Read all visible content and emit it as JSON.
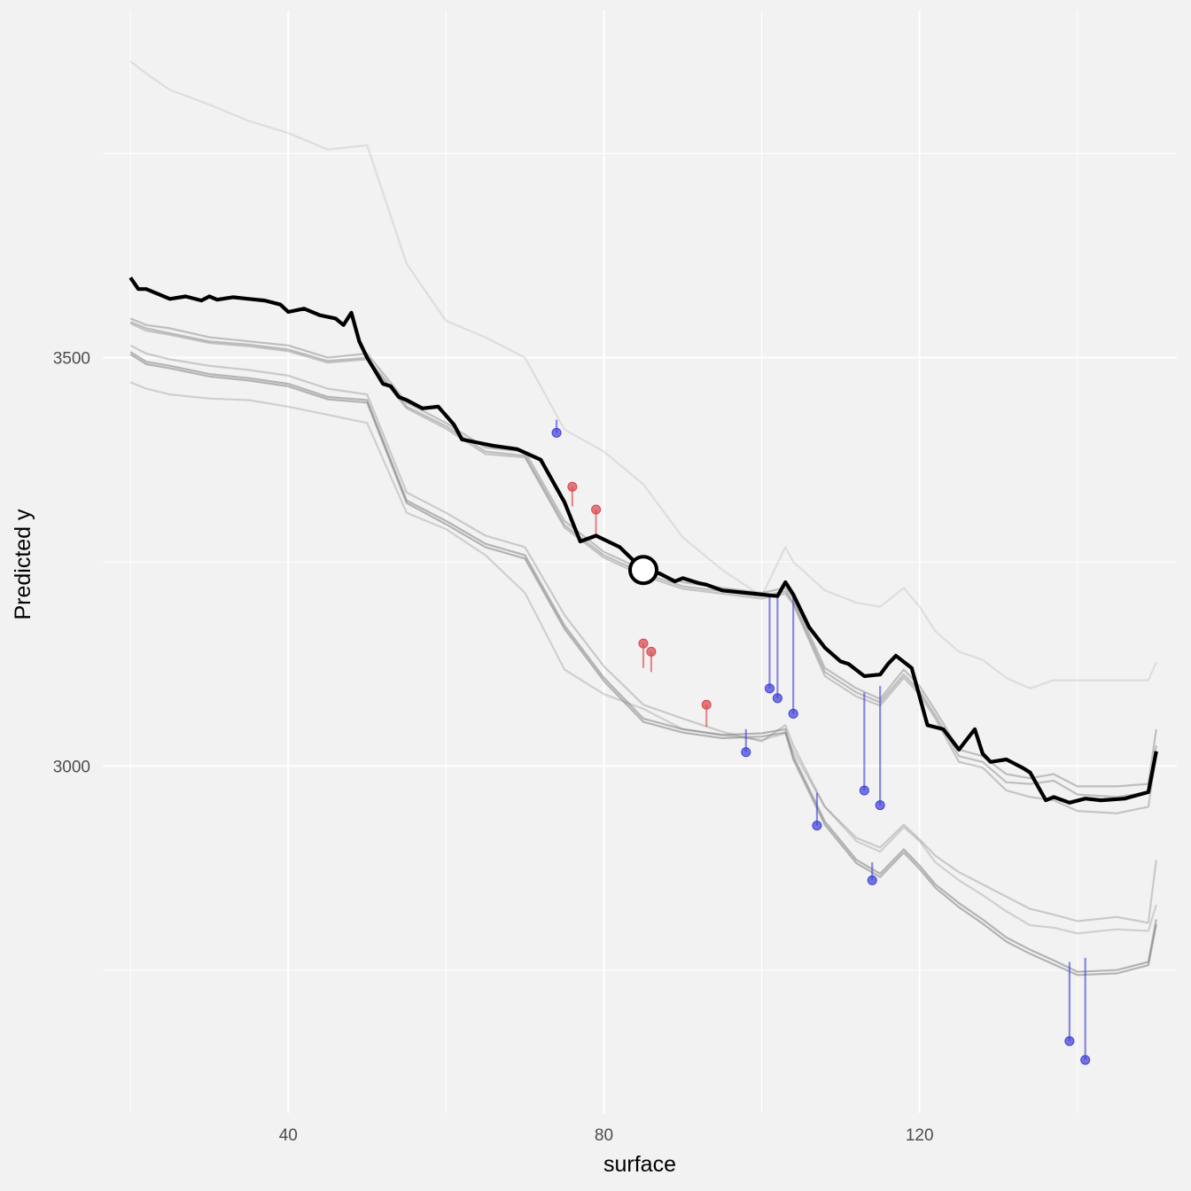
{
  "chart_data": {
    "type": "line",
    "title": "",
    "xlabel": "surface",
    "ylabel": "Predicted y",
    "xlim": [
      16.5,
      152.6
    ],
    "ylim": [
      2575,
      3925
    ],
    "x_ticks": [
      40,
      80,
      120
    ],
    "x_tick_labels": [
      "40",
      "80",
      "120"
    ],
    "x_minor_ticks": [
      20,
      60,
      100,
      140
    ],
    "y_ticks": [
      3000,
      3500
    ],
    "y_tick_labels": [
      "3000",
      "3500"
    ],
    "y_minor_ticks": [
      2750,
      3250,
      3750
    ],
    "grid": true,
    "legend": "none",
    "colors": {
      "background": "#f2f2f2",
      "grid": "#ffffff",
      "ice_lines": "#7f7f7f",
      "highlight_line": "#000000",
      "highlight_point": "#ffffff",
      "positive_residual": "#d9454a",
      "negative_residual": "#3f3fd9"
    },
    "ice_lines": [
      {
        "x": [
          20,
          22,
          25,
          30,
          35,
          40,
          45,
          50,
          55,
          60,
          65,
          70,
          75,
          80,
          85,
          90,
          95,
          100,
          103,
          104,
          108,
          112,
          115,
          118,
          120,
          122,
          125,
          128,
          131,
          134,
          137,
          140,
          145,
          149,
          150
        ],
        "y": [
          3863,
          3848,
          3828,
          3810,
          3790,
          3775,
          3755,
          3760,
          3615,
          3545,
          3525,
          3500,
          3412,
          3385,
          3345,
          3280,
          3240,
          3208,
          3268,
          3250,
          3215,
          3200,
          3195,
          3218,
          3195,
          3165,
          3140,
          3130,
          3108,
          3095,
          3105,
          3105,
          3105,
          3105,
          3127
        ],
        "opacity": 0.18
      },
      {
        "x": [
          20,
          22,
          25,
          30,
          35,
          40,
          45,
          50,
          55,
          60,
          65,
          70,
          75,
          80,
          85,
          90,
          95,
          100,
          103,
          104,
          108,
          112,
          115,
          118,
          120,
          122,
          125,
          128,
          131,
          134,
          137,
          140,
          145,
          149,
          150
        ],
        "y": [
          3548,
          3540,
          3536,
          3525,
          3520,
          3515,
          3500,
          3505,
          3445,
          3420,
          3390,
          3385,
          3300,
          3262,
          3240,
          3225,
          3218,
          3212,
          3218,
          3205,
          3120,
          3095,
          3082,
          3118,
          3098,
          3068,
          3020,
          3012,
          2990,
          2985,
          2990,
          2975,
          2975,
          2978,
          3045
        ],
        "opacity": 0.45
      },
      {
        "x": [
          20,
          22,
          25,
          30,
          35,
          40,
          45,
          50,
          55,
          60,
          65,
          70,
          75,
          80,
          85,
          90,
          95,
          100,
          103,
          104,
          108,
          112,
          115,
          118,
          120,
          122,
          125,
          128,
          131,
          134,
          137,
          140,
          145,
          149,
          150
        ],
        "y": [
          3544,
          3536,
          3530,
          3520,
          3516,
          3510,
          3496,
          3500,
          3440,
          3416,
          3385,
          3380,
          3295,
          3258,
          3236,
          3220,
          3214,
          3208,
          3214,
          3200,
          3115,
          3090,
          3078,
          3112,
          3092,
          3062,
          3012,
          3005,
          2980,
          2978,
          2982,
          2965,
          2962,
          2968,
          3025
        ],
        "opacity": 0.45
      },
      {
        "x": [
          20,
          22,
          25,
          30,
          35,
          40,
          45,
          50,
          55,
          60,
          65,
          70,
          75,
          80,
          85,
          90,
          95,
          100,
          103,
          104,
          108,
          112,
          115,
          118,
          120,
          122,
          125,
          128,
          131,
          134,
          137,
          140,
          145,
          149,
          150
        ],
        "y": [
          3542,
          3533,
          3528,
          3518,
          3514,
          3508,
          3494,
          3498,
          3438,
          3413,
          3382,
          3378,
          3292,
          3255,
          3233,
          3217,
          3211,
          3205,
          3211,
          3198,
          3110,
          3085,
          3074,
          3108,
          3088,
          3058,
          3005,
          2998,
          2970,
          2962,
          2958,
          2945,
          2942,
          2950,
          3015
        ],
        "opacity": 0.4
      },
      {
        "x": [
          20,
          22,
          25,
          30,
          35,
          40,
          45,
          50,
          55,
          60,
          65,
          70,
          75,
          80,
          85,
          90,
          95,
          100,
          103,
          104,
          108,
          112,
          115,
          118,
          120,
          122,
          125,
          128,
          131,
          134,
          137,
          140,
          145,
          149,
          150
        ],
        "y": [
          3515,
          3505,
          3498,
          3490,
          3485,
          3478,
          3462,
          3455,
          3335,
          3310,
          3282,
          3268,
          3185,
          3122,
          3075,
          3058,
          3042,
          3030,
          3050,
          3025,
          2950,
          2912,
          2900,
          2928,
          2910,
          2890,
          2870,
          2855,
          2840,
          2825,
          2818,
          2810,
          2815,
          2808,
          2885
        ],
        "opacity": 0.35
      },
      {
        "x": [
          20,
          22,
          25,
          30,
          35,
          40,
          45,
          50,
          55,
          60,
          65,
          70,
          75,
          80,
          85,
          90,
          95,
          100,
          103,
          104,
          108,
          112,
          115,
          118,
          120,
          122,
          125,
          128,
          131,
          134,
          137,
          140,
          145,
          149,
          150
        ],
        "y": [
          3507,
          3495,
          3490,
          3480,
          3475,
          3468,
          3452,
          3448,
          3325,
          3300,
          3272,
          3258,
          3172,
          3108,
          3058,
          3045,
          3038,
          3040,
          3045,
          3012,
          2932,
          2885,
          2868,
          2898,
          2878,
          2855,
          2832,
          2812,
          2790,
          2775,
          2762,
          2748,
          2750,
          2760,
          2812
        ],
        "opacity": 0.55
      },
      {
        "x": [
          20,
          22,
          25,
          30,
          35,
          40,
          45,
          50,
          55,
          60,
          65,
          70,
          75,
          80,
          85,
          90,
          95,
          100,
          103,
          104,
          108,
          112,
          115,
          118,
          120,
          122,
          125,
          128,
          131,
          134,
          137,
          140,
          145,
          149,
          150
        ],
        "y": [
          3504,
          3492,
          3487,
          3477,
          3472,
          3465,
          3449,
          3445,
          3322,
          3296,
          3268,
          3254,
          3168,
          3104,
          3054,
          3041,
          3034,
          3036,
          3041,
          3008,
          2928,
          2881,
          2864,
          2894,
          2874,
          2851,
          2827,
          2807,
          2785,
          2770,
          2757,
          2744,
          2746,
          2756,
          2806
        ],
        "opacity": 0.55
      },
      {
        "x": [
          20,
          22,
          25,
          30,
          35,
          40,
          45,
          50,
          55,
          60,
          65,
          70,
          75,
          80,
          85,
          90,
          95,
          100,
          103,
          104,
          108,
          112,
          115,
          118,
          120,
          122,
          125,
          128,
          131,
          134,
          137,
          140,
          145,
          149,
          150
        ],
        "y": [
          3470,
          3462,
          3455,
          3450,
          3448,
          3440,
          3430,
          3420,
          3310,
          3290,
          3258,
          3212,
          3118,
          3088,
          3070,
          3045,
          3038,
          3032,
          3040,
          3018,
          2950,
          2908,
          2895,
          2925,
          2908,
          2882,
          2860,
          2842,
          2822,
          2805,
          2802,
          2795,
          2800,
          2798,
          2830
        ],
        "opacity": 0.3
      }
    ],
    "highlight_line": {
      "x": [
        20,
        21,
        22,
        25,
        27,
        29,
        30,
        31,
        33,
        35,
        37,
        39,
        40,
        42,
        44,
        46,
        47,
        48,
        49,
        50,
        52,
        53,
        54,
        55,
        57,
        59,
        61,
        62,
        64,
        66,
        69,
        72,
        75,
        77,
        79,
        82,
        85,
        87,
        89,
        90,
        92,
        93,
        95,
        98,
        100,
        102,
        103,
        104,
        106,
        108,
        110,
        111,
        113,
        115,
        116,
        117,
        119,
        120,
        121,
        123,
        125,
        127,
        128,
        129,
        131,
        133,
        134,
        136,
        137,
        139,
        141,
        143,
        146,
        149,
        150
      ],
      "y": [
        3598,
        3584,
        3584,
        3572,
        3575,
        3570,
        3575,
        3571,
        3574,
        3572,
        3570,
        3565,
        3556,
        3560,
        3552,
        3548,
        3540,
        3555,
        3520,
        3500,
        3468,
        3465,
        3452,
        3448,
        3438,
        3440,
        3418,
        3400,
        3396,
        3392,
        3388,
        3375,
        3323,
        3275,
        3282,
        3268,
        3240,
        3236,
        3226,
        3230,
        3224,
        3222,
        3215,
        3212,
        3210,
        3208,
        3225,
        3210,
        3170,
        3145,
        3128,
        3125,
        3110,
        3112,
        3125,
        3135,
        3120,
        3085,
        3050,
        3045,
        3020,
        3045,
        3015,
        3005,
        3008,
        2998,
        2992,
        2958,
        2962,
        2955,
        2960,
        2958,
        2960,
        2968,
        3018
      ]
    },
    "highlight_point": {
      "x": 85,
      "y": 3240
    },
    "residuals": [
      {
        "x": 74,
        "y_point": 3408,
        "y_line": 3424,
        "sign": "negative"
      },
      {
        "x": 76,
        "y_point": 3342,
        "y_line": 3318,
        "sign": "positive"
      },
      {
        "x": 79,
        "y_point": 3314,
        "y_line": 3284,
        "sign": "positive"
      },
      {
        "x": 85,
        "y_point": 3150,
        "y_line": 3120,
        "sign": "positive"
      },
      {
        "x": 86,
        "y_point": 3140,
        "y_line": 3115,
        "sign": "positive"
      },
      {
        "x": 93,
        "y_point": 3075,
        "y_line": 3048,
        "sign": "positive"
      },
      {
        "x": 98,
        "y_point": 3017,
        "y_line": 3045,
        "sign": "negative"
      },
      {
        "x": 101,
        "y_point": 3095,
        "y_line": 3208,
        "sign": "negative"
      },
      {
        "x": 102,
        "y_point": 3083,
        "y_line": 3210,
        "sign": "negative"
      },
      {
        "x": 104,
        "y_point": 3064,
        "y_line": 3212,
        "sign": "negative"
      },
      {
        "x": 107,
        "y_point": 2927,
        "y_line": 2967,
        "sign": "negative"
      },
      {
        "x": 113,
        "y_point": 2970,
        "y_line": 3090,
        "sign": "negative"
      },
      {
        "x": 114,
        "y_point": 2860,
        "y_line": 2882,
        "sign": "negative"
      },
      {
        "x": 115,
        "y_point": 2952,
        "y_line": 3098,
        "sign": "negative"
      },
      {
        "x": 139,
        "y_point": 2663,
        "y_line": 2760,
        "sign": "negative"
      },
      {
        "x": 141,
        "y_point": 2640,
        "y_line": 2765,
        "sign": "negative"
      }
    ]
  }
}
